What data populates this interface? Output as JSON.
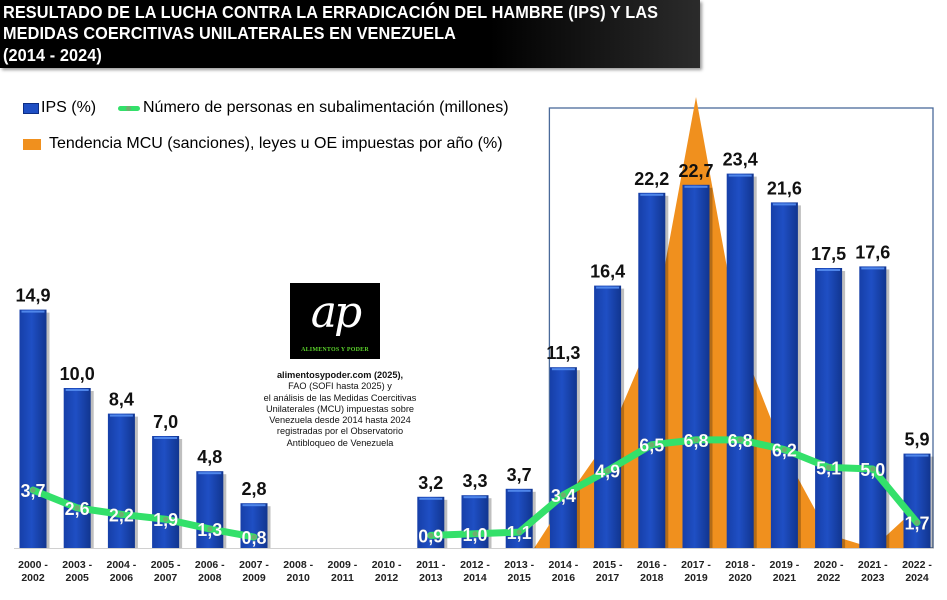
{
  "title": {
    "lines": [
      "RESULTADO DE LA LUCHA CONTRA LA ERRADICACIÓN DEL HAMBRE (IPS) Y LAS",
      "MEDIDAS COERCITIVAS UNILATERALES EN VENEZUELA",
      "(2014 - 2024)"
    ]
  },
  "legend": {
    "ips": "IPS (%)",
    "people": "Número de personas en subalimentación (millones)",
    "mcu": "Tendencia MCU (sanciones), leyes u OE impuestas por año (%)"
  },
  "colors": {
    "bar": "#1f4fc4",
    "bar_dark": "#0d2e85",
    "line": "#33e06a",
    "area": "#f0901e",
    "box": "#4a6a9a"
  },
  "logo": {
    "mark": "ap",
    "name": "ALIMENTOS Y PODER"
  },
  "credit": {
    "line1": "alimentosypoder.com (2025),",
    "lines": [
      "FAO (SOFI hasta 2025) y",
      "el análisis  de las  Medidas Coercitivas",
      "Unilaterales (MCU)  impuestas sobre",
      "Venezuela desde 2014 hasta 2024",
      "registradas por el Observatorio",
      "Antibloqueo de Venezuela"
    ]
  },
  "chart_data": {
    "type": "bar",
    "title": "RESULTADO DE LA LUCHA CONTRA LA ERRADICACIÓN DEL HAMBRE (IPS) Y LAS MEDIDAS COERCITIVAS UNILATERALES EN VENEZUELA (2014 - 2024)",
    "xlabel": "",
    "ylabel": "",
    "categories": [
      [
        "2000 -",
        "2002"
      ],
      [
        "2003 -",
        "2005"
      ],
      [
        "2004 -",
        "2006"
      ],
      [
        "2005 -",
        "2007"
      ],
      [
        "2006 -",
        "2008"
      ],
      [
        "2007 -",
        "2009"
      ],
      [
        "2008 -",
        "2010"
      ],
      [
        "2009 -",
        "2011"
      ],
      [
        "2010 -",
        "2012"
      ],
      [
        "2011 -",
        "2013"
      ],
      [
        "2012 -",
        "2014"
      ],
      [
        "2013 -",
        "2015"
      ],
      [
        "2014 -",
        "2016"
      ],
      [
        "2015 -",
        "2017"
      ],
      [
        "2016 -",
        "2018"
      ],
      [
        "2017 -",
        "2019"
      ],
      [
        "2018 -",
        "2020"
      ],
      [
        "2019 -",
        "2021"
      ],
      [
        "2020 -",
        "2022"
      ],
      [
        "2021 -",
        "2023"
      ],
      [
        "2022 -",
        "2024"
      ]
    ],
    "series": [
      {
        "name": "IPS (%)",
        "type": "bar",
        "values": [
          14.9,
          10.0,
          8.4,
          7.0,
          4.8,
          2.8,
          null,
          null,
          null,
          3.2,
          3.3,
          3.7,
          11.3,
          16.4,
          22.2,
          22.7,
          23.4,
          21.6,
          17.5,
          17.6,
          5.9
        ],
        "labels": [
          "14,9",
          "10,0",
          "8,4",
          "7,0",
          "4,8",
          "2,8",
          null,
          null,
          null,
          "3,2",
          "3,3",
          "3,7",
          "11,3",
          "16,4",
          "22,2",
          "22,7",
          "23,4",
          "21,6",
          "17,5",
          "17,6",
          "5,9"
        ]
      },
      {
        "name": "Número de personas en subalimentación (millones)",
        "type": "line",
        "values": [
          3.7,
          2.6,
          2.2,
          1.9,
          1.3,
          0.8,
          null,
          null,
          null,
          0.9,
          1.0,
          1.1,
          3.4,
          4.9,
          6.5,
          6.8,
          6.8,
          6.2,
          5.1,
          5.0,
          1.7
        ],
        "labels": [
          "3,7",
          "2,6",
          "2,2",
          "1,9",
          "1,3",
          "0,8",
          null,
          null,
          null,
          "0,9",
          "1,0",
          "1,1",
          "3,4",
          "4,9",
          "6,5",
          "6,8",
          "6,8",
          "6,2",
          "5,1",
          "5,0",
          "1,7"
        ]
      },
      {
        "name": "Tendencia MCU (sanciones), leyes u OE impuestas por año (%)",
        "type": "area",
        "values": [
          null,
          null,
          null,
          null,
          null,
          null,
          null,
          null,
          null,
          null,
          null,
          0,
          10,
          24,
          47,
          100,
          46,
          21,
          3,
          0,
          9
        ]
      }
    ],
    "ylim": [
      0,
      28
    ],
    "grid": false,
    "legend_position": "top-left",
    "highlight_range": [
      "2014 -2016",
      "2022 -2024"
    ]
  }
}
